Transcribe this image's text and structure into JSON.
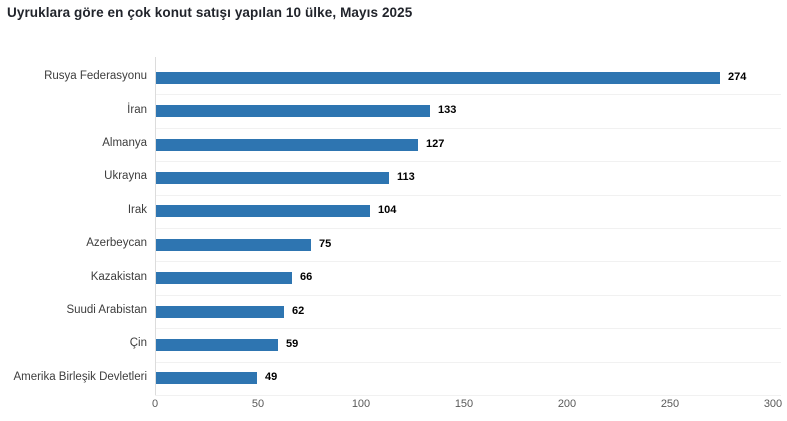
{
  "header": {
    "title": "Uyruklara göre en çok konut satışı yapılan 10 ülke, Mayıs 2025"
  },
  "chart_data": {
    "type": "bar",
    "orientation": "horizontal",
    "title": "Uyruklara göre en çok konut satışı yapılan 10 ülke, Mayıs 2025",
    "categories": [
      "Rusya Federasyonu",
      "İran",
      "Almanya",
      "Ukrayna",
      "Irak",
      "Azerbeycan",
      "Kazakistan",
      "Suudi Arabistan",
      "Çin",
      "Amerika Birleşik Devletleri"
    ],
    "values": [
      274,
      133,
      127,
      113,
      104,
      75,
      66,
      62,
      59,
      49
    ],
    "xlabel": "",
    "ylabel": "",
    "xlim": [
      0,
      300
    ],
    "x_ticks": [
      0,
      50,
      100,
      150,
      200,
      250,
      300
    ],
    "value_labels": true,
    "legend": "none",
    "grid": "faint-horizontal-row-separators"
  },
  "colors": {
    "background": "#ffffff",
    "bar": "#2e75b1",
    "title_text": "#21242b",
    "category_label": "#3d3d3d",
    "value_label": "#000000",
    "tick_label": "#595959",
    "axis_line": "#dcdcdc",
    "gridline": "#f1f1f1"
  }
}
